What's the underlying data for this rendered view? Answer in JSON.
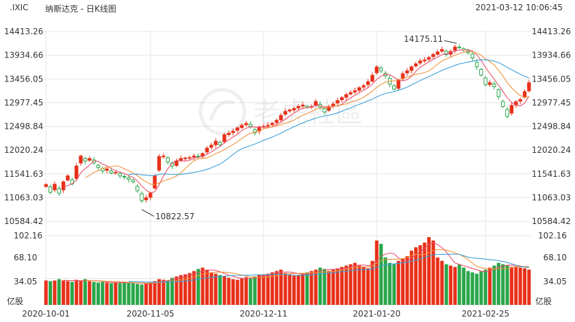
{
  "header": {
    "symbol": ".IXIC",
    "name": "纳斯达克 - 日K线图",
    "datetime": "2021-03-12 10:06:45"
  },
  "watermark": "老虎社區",
  "colors": {
    "up": "#e8311a",
    "down": "#2ba64a",
    "ma5": "#e8506a",
    "ma10": "#f0923a",
    "ma20": "#3aa0d8",
    "grid": "#e6e6e6",
    "text": "#333333"
  },
  "chart_data": [
    {
      "type": "candlestick",
      "title": "",
      "xlabel": "",
      "ylabel": "",
      "ylim": [
        10584.42,
        14413.26
      ],
      "yticks": [
        "14413.26",
        "13934.66",
        "13456.05",
        "12977.45",
        "12498.84",
        "12020.24",
        "11541.63",
        "11063.03",
        "10584.42"
      ],
      "xticks": [
        {
          "date": "2020-10-01",
          "index": 0
        },
        {
          "date": "2020-11-05",
          "index": 24
        },
        {
          "date": "2020-12-11",
          "index": 50
        },
        {
          "date": "2021-01-20",
          "index": 76
        },
        {
          "date": "2021-02-25",
          "index": 101
        }
      ],
      "annotations": [
        {
          "text": "14175.11",
          "index": 95,
          "value": 14175.11
        },
        {
          "text": "10822.57",
          "index": 22,
          "value": 10822.57
        }
      ],
      "close": [
        11326,
        11170,
        11332,
        11150,
        11380,
        11500,
        11340,
        11700,
        11900,
        11800,
        11850,
        11760,
        11670,
        11600,
        11640,
        11560,
        11570,
        11500,
        11480,
        11430,
        11380,
        11200,
        11000,
        11060,
        11150,
        11500,
        11890,
        11900,
        11780,
        11700,
        11800,
        11850,
        11860,
        11870,
        11900,
        11890,
        11950,
        12060,
        12120,
        12200,
        12130,
        12330,
        12360,
        12400,
        12470,
        12520,
        12560,
        12500,
        12370,
        12480,
        12500,
        12520,
        12560,
        12620,
        12720,
        12800,
        12830,
        12860,
        12900,
        12930,
        12880,
        12900,
        13000,
        12890,
        12790,
        12900,
        12950,
        13020,
        13080,
        13140,
        13180,
        13220,
        13280,
        13320,
        13400,
        13530,
        13700,
        13620,
        13520,
        13350,
        13250,
        13420,
        13560,
        13620,
        13700,
        13760,
        13820,
        13840,
        13890,
        13950,
        14000,
        14050,
        13950,
        14010,
        14100,
        14095,
        14040,
        13987,
        13880,
        13700,
        13533,
        13340,
        13380,
        13300,
        13100,
        12900,
        12700,
        12923,
        12997,
        13040,
        13200,
        13380
      ],
      "volume_ylim": [
        0,
        102.16
      ],
      "volume_yticks": [
        "102.16",
        "68.10",
        "34.05"
      ],
      "volume_unit": "亿股",
      "volume": [
        36,
        35,
        36,
        38,
        36,
        35,
        34,
        37,
        36,
        38,
        35,
        34,
        33,
        34,
        33,
        32,
        33,
        32,
        34,
        33,
        32,
        31,
        30,
        31,
        33,
        35,
        38,
        37,
        36,
        40,
        42,
        44,
        45,
        47,
        50,
        53,
        55,
        52,
        48,
        46,
        44,
        42,
        40,
        38,
        37,
        39,
        41,
        40,
        42,
        44,
        45,
        46,
        48,
        50,
        52,
        47,
        45,
        43,
        44,
        46,
        48,
        50,
        52,
        55,
        53,
        50,
        52,
        54,
        56,
        58,
        60,
        62,
        58,
        56,
        54,
        65,
        95,
        90,
        70,
        62,
        60,
        65,
        68,
        72,
        80,
        85,
        88,
        92,
        100,
        95,
        70,
        65,
        60,
        58,
        56,
        60,
        55,
        50,
        48,
        46,
        50,
        52,
        55,
        58,
        62,
        60,
        58,
        56,
        57,
        55,
        54,
        52
      ]
    }
  ]
}
